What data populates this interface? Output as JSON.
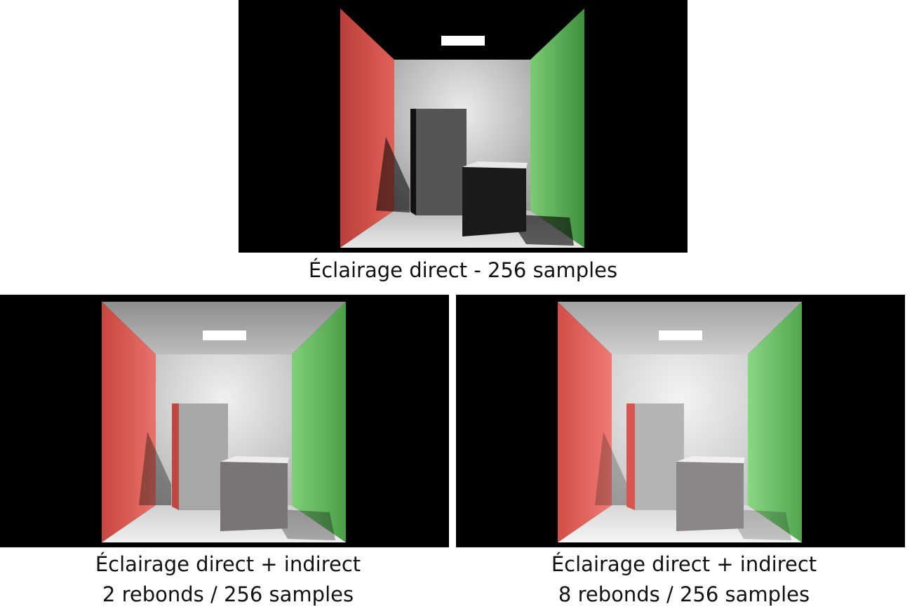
{
  "panels": [
    {
      "caption_lines": [
        "Éclairage direct - 256 samples"
      ],
      "mode": "direct"
    },
    {
      "caption_lines": [
        "Éclairage direct + indirect",
        "2 rebonds / 256 samples"
      ],
      "mode": "indirect-2"
    },
    {
      "caption_lines": [
        "Éclairage direct + indirect",
        "8 rebonds / 256 samples"
      ],
      "mode": "indirect-8"
    }
  ],
  "colors": {
    "red_wall": "#e0564e",
    "green_wall": "#66be66",
    "white": "#e6e6e6",
    "background": "#000000"
  }
}
